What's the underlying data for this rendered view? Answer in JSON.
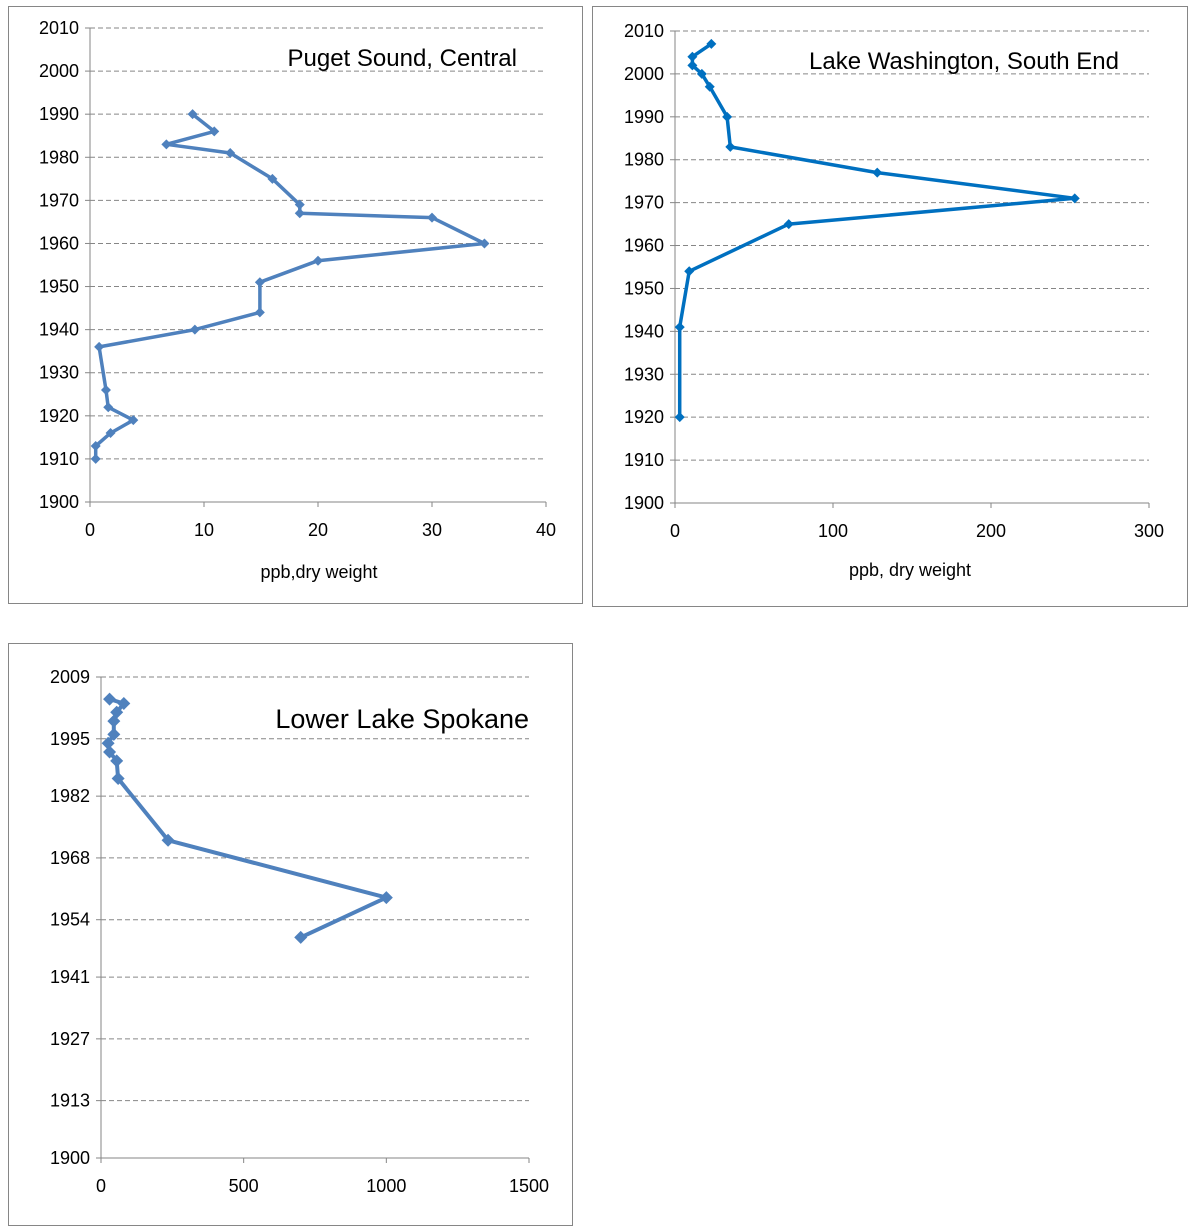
{
  "chart_data": [
    {
      "type": "line",
      "title": "Puget Sound, Central",
      "xlabel": "ppb,dry weight",
      "ylabel": "",
      "xlim": [
        0,
        40
      ],
      "ylim": [
        1900,
        2010
      ],
      "xticks": [
        0,
        10,
        20,
        30,
        40
      ],
      "yticks": [
        1900,
        1910,
        1920,
        1930,
        1940,
        1950,
        1960,
        1970,
        1980,
        1990,
        2000,
        2010
      ],
      "grid": "horizontal dashed",
      "color": "#4f81bd",
      "marker": "diamond",
      "series": [
        {
          "x": [
            9,
            10.9,
            6.7,
            12.3,
            16,
            18.4,
            18.4,
            30,
            34.6,
            20,
            14.9,
            14.9,
            9.2,
            0.8,
            1.4,
            1.6,
            3.8,
            1.8,
            0.5,
            0.5
          ],
          "y": [
            1990,
            1986,
            1983,
            1981,
            1975,
            1969,
            1967,
            1966,
            1960,
            1956,
            1951,
            1944,
            1940,
            1936,
            1926,
            1922,
            1919,
            1916,
            1913,
            1910
          ]
        }
      ]
    },
    {
      "type": "line",
      "title": "Lake Washington, South End",
      "xlabel": "ppb, dry weight",
      "ylabel": "",
      "xlim": [
        0,
        300
      ],
      "ylim": [
        1900,
        2010
      ],
      "xticks": [
        0,
        100,
        200,
        300
      ],
      "yticks": [
        1900,
        1910,
        1920,
        1930,
        1940,
        1950,
        1960,
        1970,
        1980,
        1990,
        2000,
        2010
      ],
      "grid": "horizontal dashed",
      "color": "#0070c0",
      "marker": "diamond",
      "series": [
        {
          "x": [
            23,
            11,
            11,
            17,
            22,
            33,
            35,
            128,
            253,
            72,
            9,
            3,
            3
          ],
          "y": [
            2007,
            2004,
            2002,
            2000,
            1997,
            1990,
            1983,
            1977,
            1971,
            1965,
            1954,
            1941,
            1920
          ]
        }
      ]
    },
    {
      "type": "line",
      "title": "Lower Lake Spokane",
      "xlabel": "",
      "ylabel": "",
      "xlim": [
        0,
        1500
      ],
      "ylim": [
        1900,
        2009
      ],
      "xticks": [
        0,
        500,
        1000,
        1500
      ],
      "yticks": [
        1900,
        1913,
        1927,
        1941,
        1954,
        1968,
        1982,
        1995,
        2009
      ],
      "grid": "horizontal dashed",
      "color": "#4f81bd",
      "marker": "diamond",
      "series": [
        {
          "x": [
            30,
            80,
            55,
            45,
            45,
            25,
            30,
            55,
            60,
            235,
            1000,
            700
          ],
          "y": [
            2004,
            2003,
            2001,
            1999,
            1996,
            1994,
            1992,
            1990,
            1986,
            1972,
            1959,
            1950
          ]
        }
      ]
    }
  ]
}
